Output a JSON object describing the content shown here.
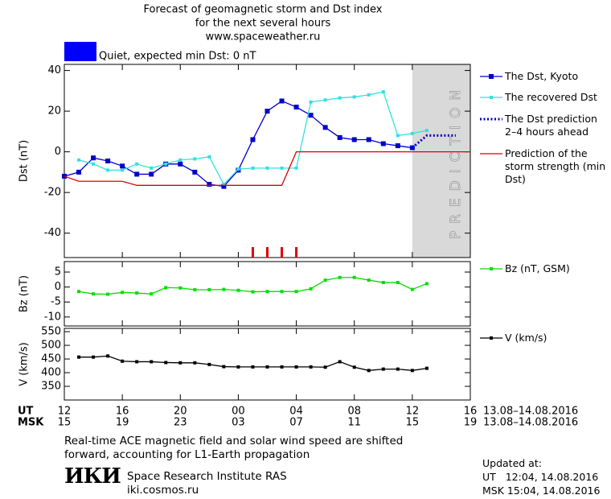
{
  "header": {
    "title": [
      "Forecast of geomagnetic storm and Dst index",
      "for the next several hours",
      "www.spaceweather.ru"
    ]
  },
  "status": {
    "color": "#0000ff",
    "text": "Quiet, expected min Dst: 0 nT"
  },
  "time_axis": {
    "xlim": [
      0,
      28
    ],
    "ut_label": "UT",
    "msk_label": "MSK",
    "ut_ticks": [
      {
        "value": 0,
        "label": "12"
      },
      {
        "value": 4,
        "label": "16"
      },
      {
        "value": 8,
        "label": "20"
      },
      {
        "value": 12,
        "label": "00"
      },
      {
        "value": 16,
        "label": "04"
      },
      {
        "value": 20,
        "label": "08"
      },
      {
        "value": 24,
        "label": "12"
      },
      {
        "value": 28,
        "label": "16"
      }
    ],
    "msk_ticks": [
      "15",
      "19",
      "23",
      "03",
      "07",
      "11",
      "15",
      "19"
    ],
    "ut_dates": "13.08–14.08.2016",
    "msk_dates": "13.08–14.08.2016"
  },
  "chart_data": [
    {
      "type": "line",
      "y_label": "Dst (nT)",
      "ylim": [
        -52,
        43
      ],
      "yticks": [
        -40,
        -20,
        0,
        20,
        40
      ],
      "prediction_zone": {
        "from": 24,
        "to": 28,
        "label": "PREDICTION",
        "color": "#d9d9d9"
      },
      "markers": {
        "x": [
          13,
          14,
          15,
          16
        ],
        "color": "#e00000"
      },
      "series": [
        {
          "name": "The Dst, Kyoto",
          "color": "#0000cc",
          "style": "square",
          "x": [
            0,
            1,
            2,
            3,
            4,
            5,
            6,
            7,
            8,
            9,
            10,
            11,
            12,
            13,
            14,
            15,
            16,
            17,
            18,
            19,
            20,
            21,
            22,
            23,
            24
          ],
          "values": [
            -12,
            -10,
            -3,
            -4.5,
            -7,
            -11,
            -11,
            -6,
            -6,
            -10,
            -16,
            -17,
            -9,
            6,
            20,
            25,
            22,
            18,
            12,
            7,
            6,
            6,
            4,
            3,
            2
          ]
        },
        {
          "name": "The recovered Dst",
          "color": "#33e0e0",
          "style": "small-square",
          "x": [
            1,
            2,
            3,
            4,
            5,
            6,
            7,
            8,
            9,
            10,
            11,
            12,
            13,
            14,
            15,
            16,
            17,
            18,
            19,
            20,
            21,
            22,
            23,
            24,
            25
          ],
          "values": [
            -4,
            -6,
            -9,
            -9,
            -6,
            -8,
            -6,
            -4,
            -3.5,
            -2.5,
            -16,
            -8.5,
            -8,
            -8,
            -8,
            -8,
            24.5,
            25.5,
            26.5,
            27,
            28,
            29.5,
            8,
            9,
            10.5
          ]
        },
        {
          "name": "The Dst prediction 2–4 hours ahead",
          "color": "#0000cc",
          "style": "dotted",
          "x": [
            24,
            25,
            27
          ],
          "values": [
            2,
            8,
            8
          ]
        },
        {
          "name": "Prediction of the storm strength (min Dst)",
          "color": "#e00000",
          "style": "line",
          "x": [
            0,
            1,
            4,
            5,
            15,
            16,
            28
          ],
          "values": [
            -12,
            -14.5,
            -14.5,
            -16.5,
            -16.5,
            0,
            0
          ]
        }
      ]
    },
    {
      "type": "line",
      "y_label": "Bz (nT)",
      "ylim": [
        -13,
        8.5
      ],
      "yticks": [
        -10,
        -5,
        0,
        5
      ],
      "series": [
        {
          "name": "Bz (nT, GSM)",
          "color": "#00e000",
          "style": "small-square",
          "x": [
            1,
            2,
            3,
            4,
            5,
            6,
            7,
            8,
            9,
            10,
            11,
            12,
            13,
            14,
            15,
            16,
            17,
            18,
            19,
            20,
            21,
            22,
            23,
            24,
            25
          ],
          "values": [
            -1.5,
            -2.3,
            -2.4,
            -1.8,
            -2,
            -2.3,
            -0.2,
            -0.3,
            -0.9,
            -0.9,
            -0.8,
            -1.1,
            -1.6,
            -1.5,
            -1.5,
            -1.5,
            -0.6,
            2.3,
            3.2,
            3.2,
            2.3,
            1.5,
            1.5,
            -0.8,
            1.1
          ]
        }
      ]
    },
    {
      "type": "line",
      "y_label": "V (km/s)",
      "ylim": [
        300,
        562
      ],
      "yticks": [
        350,
        400,
        450,
        500,
        550
      ],
      "series": [
        {
          "name": "V (km/s)",
          "color": "#000000",
          "style": "small-square",
          "x": [
            1,
            2,
            3,
            4,
            5,
            6,
            7,
            8,
            9,
            10,
            11,
            12,
            13,
            14,
            15,
            16,
            17,
            18,
            19,
            20,
            21,
            22,
            23,
            24,
            25
          ],
          "values": [
            457,
            457,
            461,
            442,
            440,
            440,
            437,
            436,
            436,
            430,
            422,
            421,
            421,
            421,
            421,
            421,
            421,
            420,
            440,
            420,
            408,
            413,
            413,
            408,
            416
          ]
        }
      ]
    }
  ],
  "footer": {
    "note": [
      "Real-time ACE magnetic field and solar wind speed are shifted",
      "forward, accounting for L1-Earth propagation"
    ],
    "logo": "ИКИ",
    "institute": "Space Research Institute RAS",
    "site": "iki.cosmos.ru",
    "updated": [
      "Updated at:",
      "UT   12:04, 14.08.2016",
      "MSK 15:04, 14.08.2016"
    ]
  }
}
